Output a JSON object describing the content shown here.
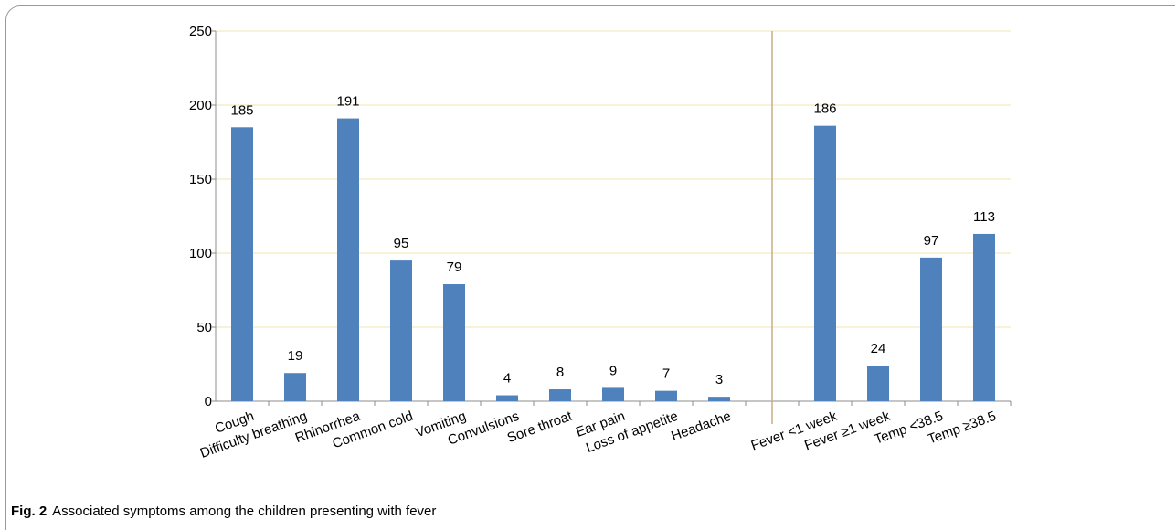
{
  "caption": {
    "label": "Fig. 2",
    "text": "Associated symptoms among the children presenting with fever"
  },
  "chart_data": {
    "type": "bar",
    "categories": [
      "Cough",
      "Difficulty breathing",
      "Rhinorrhea",
      "Common cold",
      "Vomiting",
      "Convulsions",
      "Sore throat",
      "Ear pain",
      "Loss of appetite",
      "Headache",
      "",
      "Fever <1 week",
      "Fever ≥1 week",
      "Temp <38.5",
      "Temp ≥38.5"
    ],
    "values": [
      185,
      19,
      191,
      95,
      79,
      4,
      8,
      9,
      7,
      3,
      null,
      186,
      24,
      97,
      113
    ],
    "data_labels": [
      "185",
      "19",
      "191",
      "95",
      "79",
      "4",
      "8",
      "9",
      "7",
      "3",
      "",
      "186",
      "24",
      "97",
      "113"
    ],
    "yticks": [
      "0",
      "50",
      "100",
      "150",
      "200",
      "250"
    ],
    "ylim": [
      0,
      250
    ],
    "xlabel": "",
    "ylabel": "",
    "title": "",
    "grid": true,
    "separator_after_category": "",
    "colors": {
      "bar": "#4f81bd",
      "grid": "#f2e6b3",
      "axis": "#8c8c8c",
      "separator": "#c9ad86"
    }
  }
}
